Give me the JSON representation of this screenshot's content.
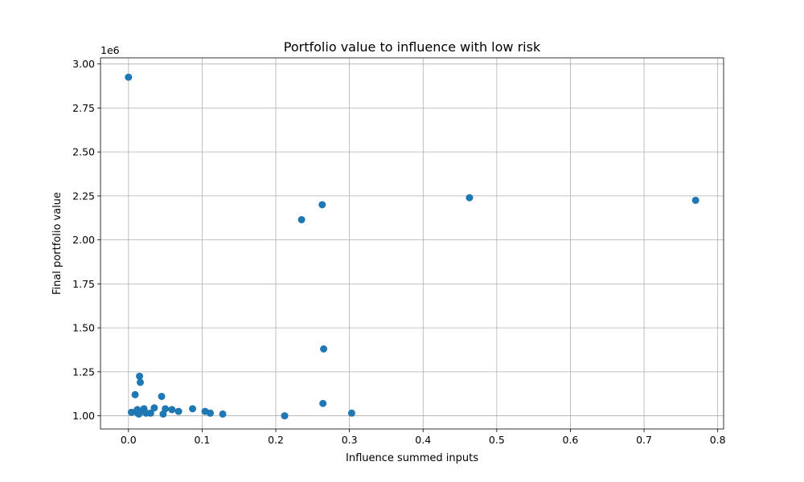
{
  "chart_data": {
    "type": "scatter",
    "title": "Portfolio value to influence with low risk",
    "xlabel": "Influence summed inputs",
    "ylabel": "Final portfolio value",
    "y_offset_label": "1e6",
    "y_scale": 1000000,
    "xlim": [
      -0.038,
      0.808
    ],
    "ylim": [
      0.925,
      3.035
    ],
    "x_ticks": [
      0.0,
      0.1,
      0.2,
      0.3,
      0.4,
      0.5,
      0.6,
      0.7,
      0.8
    ],
    "x_tick_labels": [
      "0.0",
      "0.1",
      "0.2",
      "0.3",
      "0.4",
      "0.5",
      "0.6",
      "0.7",
      "0.8"
    ],
    "y_ticks": [
      1.0,
      1.25,
      1.5,
      1.75,
      2.0,
      2.25,
      2.5,
      2.75,
      3.0
    ],
    "y_tick_labels": [
      "1.00",
      "1.25",
      "1.50",
      "1.75",
      "2.00",
      "2.25",
      "2.50",
      "2.75",
      "3.00"
    ],
    "grid": true,
    "marker_color": "#1f77b4",
    "points": [
      {
        "x": 0.0,
        "y": 2.925
      },
      {
        "x": 0.004,
        "y": 1.02
      },
      {
        "x": 0.009,
        "y": 1.12
      },
      {
        "x": 0.011,
        "y": 1.02
      },
      {
        "x": 0.012,
        "y": 1.035
      },
      {
        "x": 0.014,
        "y": 1.01
      },
      {
        "x": 0.015,
        "y": 1.225
      },
      {
        "x": 0.016,
        "y": 1.19
      },
      {
        "x": 0.018,
        "y": 1.025
      },
      {
        "x": 0.021,
        "y": 1.04
      },
      {
        "x": 0.024,
        "y": 1.015
      },
      {
        "x": 0.03,
        "y": 1.015
      },
      {
        "x": 0.035,
        "y": 1.045
      },
      {
        "x": 0.045,
        "y": 1.11
      },
      {
        "x": 0.047,
        "y": 1.01
      },
      {
        "x": 0.05,
        "y": 1.04
      },
      {
        "x": 0.059,
        "y": 1.035
      },
      {
        "x": 0.068,
        "y": 1.025
      },
      {
        "x": 0.087,
        "y": 1.04
      },
      {
        "x": 0.104,
        "y": 1.025
      },
      {
        "x": 0.111,
        "y": 1.015
      },
      {
        "x": 0.128,
        "y": 1.01
      },
      {
        "x": 0.212,
        "y": 1.0
      },
      {
        "x": 0.235,
        "y": 2.115
      },
      {
        "x": 0.263,
        "y": 2.2
      },
      {
        "x": 0.264,
        "y": 1.07
      },
      {
        "x": 0.265,
        "y": 1.38
      },
      {
        "x": 0.303,
        "y": 1.015
      },
      {
        "x": 0.463,
        "y": 2.24
      },
      {
        "x": 0.77,
        "y": 2.225
      }
    ]
  }
}
